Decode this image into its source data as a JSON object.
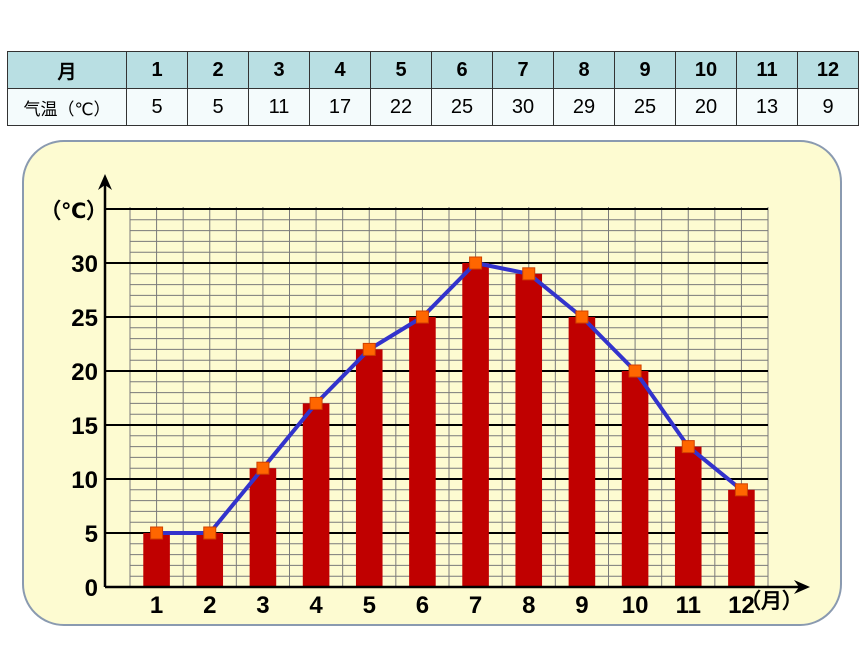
{
  "table": {
    "header_label": "月",
    "row_label": "气温（℃）",
    "months": [
      "1",
      "2",
      "3",
      "4",
      "5",
      "6",
      "7",
      "8",
      "9",
      "10",
      "11",
      "12"
    ],
    "temps": [
      "5",
      "5",
      "11",
      "17",
      "22",
      "25",
      "30",
      "29",
      "25",
      "20",
      "13",
      "9"
    ]
  },
  "chart_data": {
    "type": "bar",
    "categories": [
      "1",
      "2",
      "3",
      "4",
      "5",
      "6",
      "7",
      "8",
      "9",
      "10",
      "11",
      "12"
    ],
    "series": [
      {
        "type": "bar",
        "values": [
          5,
          5,
          11,
          17,
          22,
          25,
          30,
          29,
          25,
          20,
          13,
          9
        ],
        "color": "#c00000"
      },
      {
        "type": "line",
        "values": [
          5,
          5,
          11,
          17,
          22,
          25,
          30,
          29,
          25,
          20,
          13,
          9
        ],
        "color": "#3333cc",
        "marker_color": "#ff6600"
      }
    ],
    "xlabel": "（月）",
    "ylabel": "（℃）",
    "yticks": [
      "0",
      "5",
      "10",
      "15",
      "20",
      "25",
      "30"
    ],
    "ylim": [
      0,
      35
    ],
    "grid": true
  }
}
